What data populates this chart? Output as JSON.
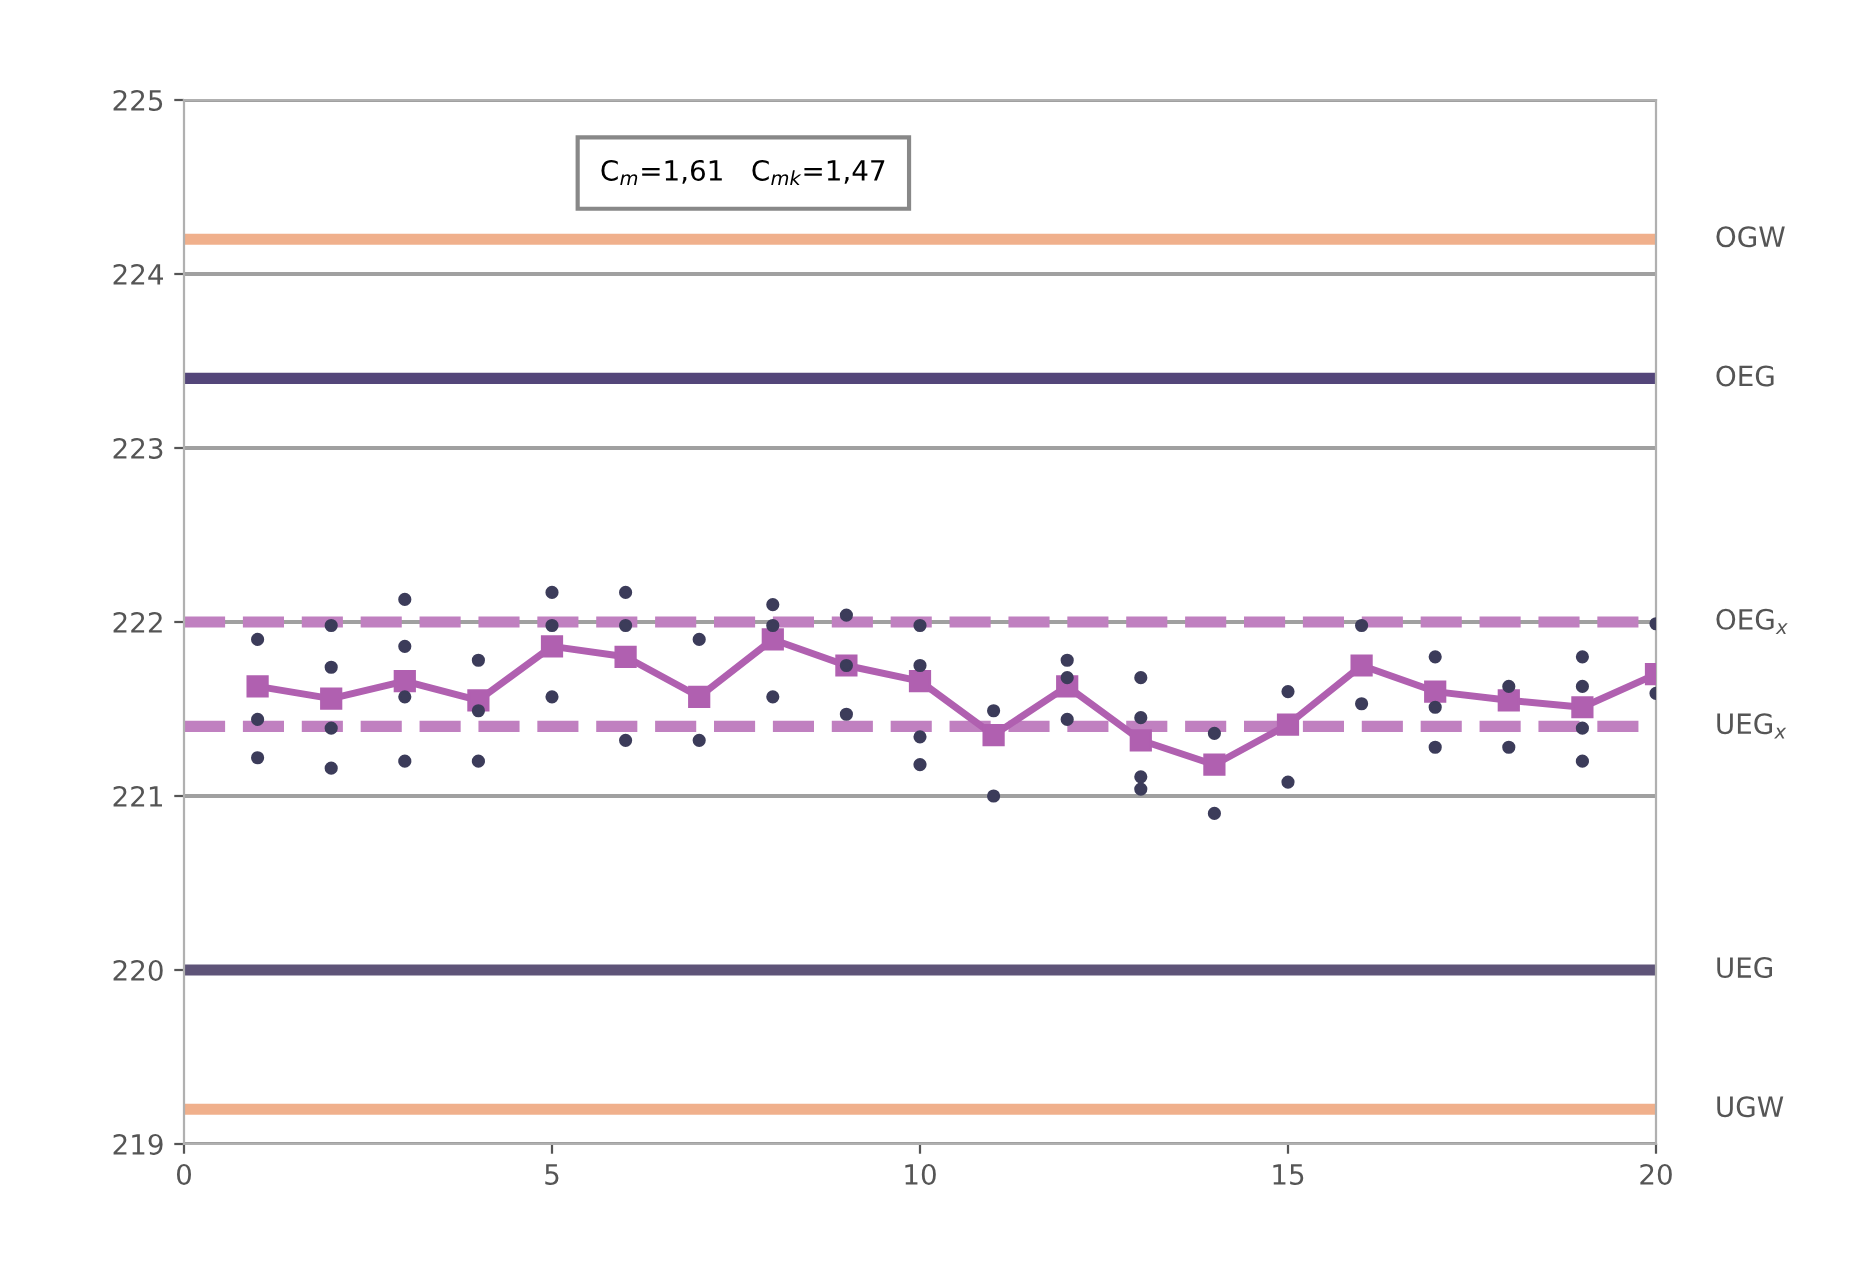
{
  "chart_data": {
    "type": "line",
    "annotations": [
      "C$_{m}$=1,61   C$_{mk}$=1,47"
    ],
    "xlim": [
      0,
      20
    ],
    "xticks": [
      0,
      5,
      10,
      15,
      20
    ],
    "ylim": [
      219,
      225
    ],
    "yticks": [
      219,
      220,
      221,
      222,
      223,
      224,
      225
    ],
    "grid": "y",
    "legend": false,
    "series": [
      {
        "type": "scatter",
        "color": "#3c3c5a",
        "marker": "circle",
        "x": [
          1,
          1,
          1,
          2,
          2,
          2,
          2,
          3,
          3,
          3,
          3,
          4,
          4,
          4,
          5,
          5,
          5,
          6,
          6,
          6,
          7,
          7,
          8,
          8,
          8,
          9,
          9,
          9,
          10,
          10,
          10,
          10,
          11,
          11,
          12,
          12,
          12,
          13,
          13,
          13,
          13,
          14,
          14,
          15,
          15,
          16,
          16,
          17,
          17,
          17,
          18,
          18,
          19,
          19,
          19,
          19,
          20,
          20
        ],
        "values": [
          221.9,
          221.44,
          221.22,
          221.98,
          221.74,
          221.39,
          221.16,
          222.13,
          221.86,
          221.57,
          221.2,
          221.78,
          221.49,
          221.2,
          222.17,
          221.98,
          221.57,
          222.17,
          221.98,
          221.32,
          221.9,
          221.32,
          222.1,
          221.98,
          221.57,
          222.04,
          221.75,
          221.47,
          221.98,
          221.75,
          221.34,
          221.18,
          221.49,
          221.0,
          221.78,
          221.68,
          221.44,
          221.68,
          221.45,
          221.11,
          221.04,
          221.36,
          220.9,
          221.6,
          221.08,
          221.98,
          221.53,
          221.8,
          221.51,
          221.28,
          221.63,
          221.28,
          221.8,
          221.63,
          221.39,
          221.2,
          221.99,
          221.59
        ]
      },
      {
        "color": "#b060b0",
        "marker": "square",
        "line_style": "solid",
        "x": [
          1,
          2,
          3,
          4,
          5,
          6,
          7,
          8,
          9,
          10,
          11,
          12,
          13,
          14,
          15,
          16,
          17,
          18,
          19,
          20
        ],
        "values": [
          221.63,
          221.56,
          221.66,
          221.55,
          221.86,
          221.8,
          221.57,
          221.9,
          221.75,
          221.66,
          221.35,
          221.63,
          221.32,
          221.18,
          221.41,
          221.75,
          221.6,
          221.55,
          221.51,
          221.7
        ]
      }
    ],
    "ref_lines": [
      {
        "axis": "y",
        "value": 224.2,
        "label": "OGW",
        "color": "#f0b08c",
        "line_style": "solid"
      },
      {
        "axis": "y",
        "value": 223.4,
        "label": "OEG",
        "color": "#54467a",
        "line_style": "solid"
      },
      {
        "axis": "y",
        "value": 222.0,
        "label": "OEG$_{x}$",
        "color": "#c080c0",
        "line_style": "dashed"
      },
      {
        "axis": "y",
        "value": 221.4,
        "label": "UEG$_{x}$",
        "color": "#c080c0",
        "line_style": "dashed"
      },
      {
        "axis": "y",
        "value": 220.0,
        "label": "UEG",
        "color": "#5e5478",
        "line_style": "solid"
      },
      {
        "axis": "y",
        "value": 219.2,
        "label": "UGW",
        "color": "#f0b08c",
        "line_style": "solid"
      }
    ]
  }
}
